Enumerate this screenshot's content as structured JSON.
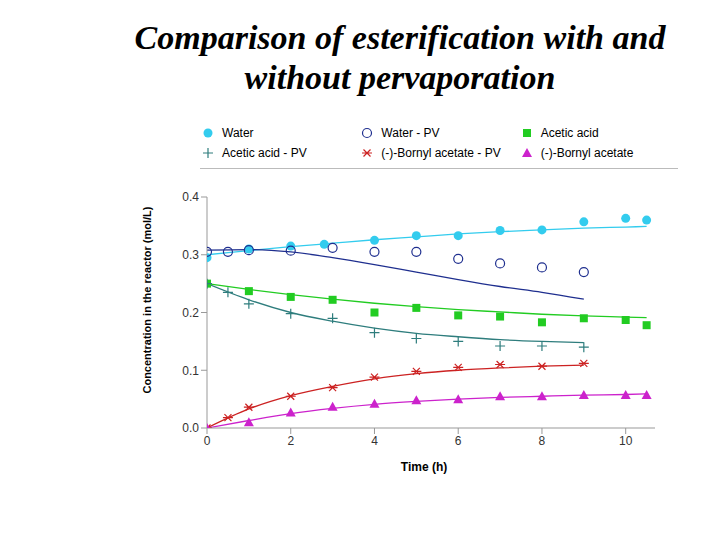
{
  "chart_data": {
    "type": "scatter",
    "title": "Comparison of esterification with and without pervaporation",
    "x_label": "Time (h)",
    "y_label": "Concentration in the reactor (mol/L)",
    "xlim": [
      0,
      10.7
    ],
    "xticks": [
      0,
      2,
      4,
      6,
      8,
      10
    ],
    "ylim": [
      0,
      0.4
    ],
    "yticks": [
      {
        "value": 0,
        "label": "0.0"
      },
      0.1,
      0.2,
      0.3,
      0.4
    ],
    "grid": false,
    "legend": "top",
    "series": [
      {
        "name": "Water",
        "color": "#33ccee",
        "marker": "circle",
        "line_style": "solid",
        "x": [
          0,
          1,
          2,
          2.8,
          4,
          5,
          6,
          7,
          8,
          9,
          10,
          10.5
        ],
        "values": [
          0.295,
          0.31,
          0.315,
          0.318,
          0.325,
          0.333,
          0.333,
          0.342,
          0.343,
          0.357,
          0.363,
          0.36
        ],
        "fit_x": [
          0,
          1,
          2,
          3,
          4,
          5,
          6,
          7,
          8,
          9,
          10,
          10.5
        ],
        "fit_values": [
          0.3,
          0.307,
          0.314,
          0.32,
          0.326,
          0.331,
          0.336,
          0.34,
          0.343,
          0.346,
          0.348,
          0.349
        ]
      },
      {
        "name": "Water - PV",
        "color": "#1f2f8f",
        "marker": "circle_open",
        "line_style": "solid",
        "x": [
          0,
          0.5,
          1,
          2,
          3,
          4,
          5,
          6,
          7,
          8,
          9
        ],
        "values": [
          0.305,
          0.305,
          0.308,
          0.307,
          0.312,
          0.305,
          0.305,
          0.293,
          0.285,
          0.278,
          0.27
        ],
        "fit_x": [
          0,
          1,
          2,
          3,
          4,
          5,
          6,
          7,
          8,
          9
        ],
        "fit_values": [
          0.308,
          0.309,
          0.305,
          0.295,
          0.283,
          0.27,
          0.257,
          0.245,
          0.235,
          0.223
        ]
      },
      {
        "name": "Acetic acid",
        "color": "#22cc22",
        "marker": "square",
        "line_style": "solid",
        "x": [
          0,
          1,
          2,
          3,
          4,
          5,
          6,
          7,
          8,
          9,
          10,
          10.5
        ],
        "values": [
          0.25,
          0.237,
          0.227,
          0.222,
          0.2,
          0.208,
          0.195,
          0.193,
          0.183,
          0.19,
          0.187,
          0.178
        ],
        "fit_x": [
          0,
          1,
          2,
          3,
          4,
          5,
          6,
          7,
          8,
          9,
          10,
          10.5
        ],
        "fit_values": [
          0.25,
          0.24,
          0.231,
          0.223,
          0.216,
          0.21,
          0.205,
          0.201,
          0.197,
          0.194,
          0.192,
          0.191
        ]
      },
      {
        "name": "Acetic acid - PV",
        "color": "#2e7d7d",
        "marker": "plus",
        "line_style": "solid",
        "x": [
          0,
          0.5,
          1,
          2,
          3,
          4,
          5,
          6,
          7,
          8,
          9
        ],
        "values": [
          0.25,
          0.235,
          0.215,
          0.198,
          0.19,
          0.165,
          0.155,
          0.15,
          0.142,
          0.142,
          0.14
        ],
        "fit_x": [
          0,
          1,
          2,
          3,
          4,
          5,
          6,
          7,
          8,
          9
        ],
        "fit_values": [
          0.25,
          0.222,
          0.2,
          0.185,
          0.173,
          0.164,
          0.158,
          0.153,
          0.15,
          0.148
        ]
      },
      {
        "name": "(-)-Bornyl acetate - PV",
        "color": "#cc2222",
        "marker": "asterisk",
        "line_style": "solid",
        "x": [
          0,
          0.5,
          1,
          2,
          3,
          4,
          5,
          6,
          7,
          8,
          9
        ],
        "values": [
          0,
          0.018,
          0.036,
          0.055,
          0.07,
          0.088,
          0.098,
          0.105,
          0.11,
          0.107,
          0.112
        ],
        "fit_x": [
          0,
          1,
          2,
          3,
          4,
          5,
          6,
          7,
          8,
          9
        ],
        "fit_values": [
          0,
          0.033,
          0.056,
          0.072,
          0.085,
          0.094,
          0.1,
          0.104,
          0.107,
          0.109
        ]
      },
      {
        "name": "(-)-Bornyl acetate",
        "color": "#cc22cc",
        "marker": "triangle",
        "line_style": "solid",
        "x": [
          0,
          1,
          2,
          3,
          4,
          5,
          6,
          7,
          8,
          9,
          10,
          10.5
        ],
        "values": [
          0,
          0.01,
          0.027,
          0.037,
          0.042,
          0.048,
          0.05,
          0.055,
          0.055,
          0.057,
          0.057,
          0.057
        ],
        "fit_x": [
          0,
          1,
          2,
          3,
          4,
          5,
          6,
          7,
          8,
          9,
          10,
          10.5
        ],
        "fit_values": [
          0,
          0.013,
          0.025,
          0.034,
          0.041,
          0.046,
          0.05,
          0.053,
          0.055,
          0.057,
          0.058,
          0.059
        ]
      }
    ]
  }
}
